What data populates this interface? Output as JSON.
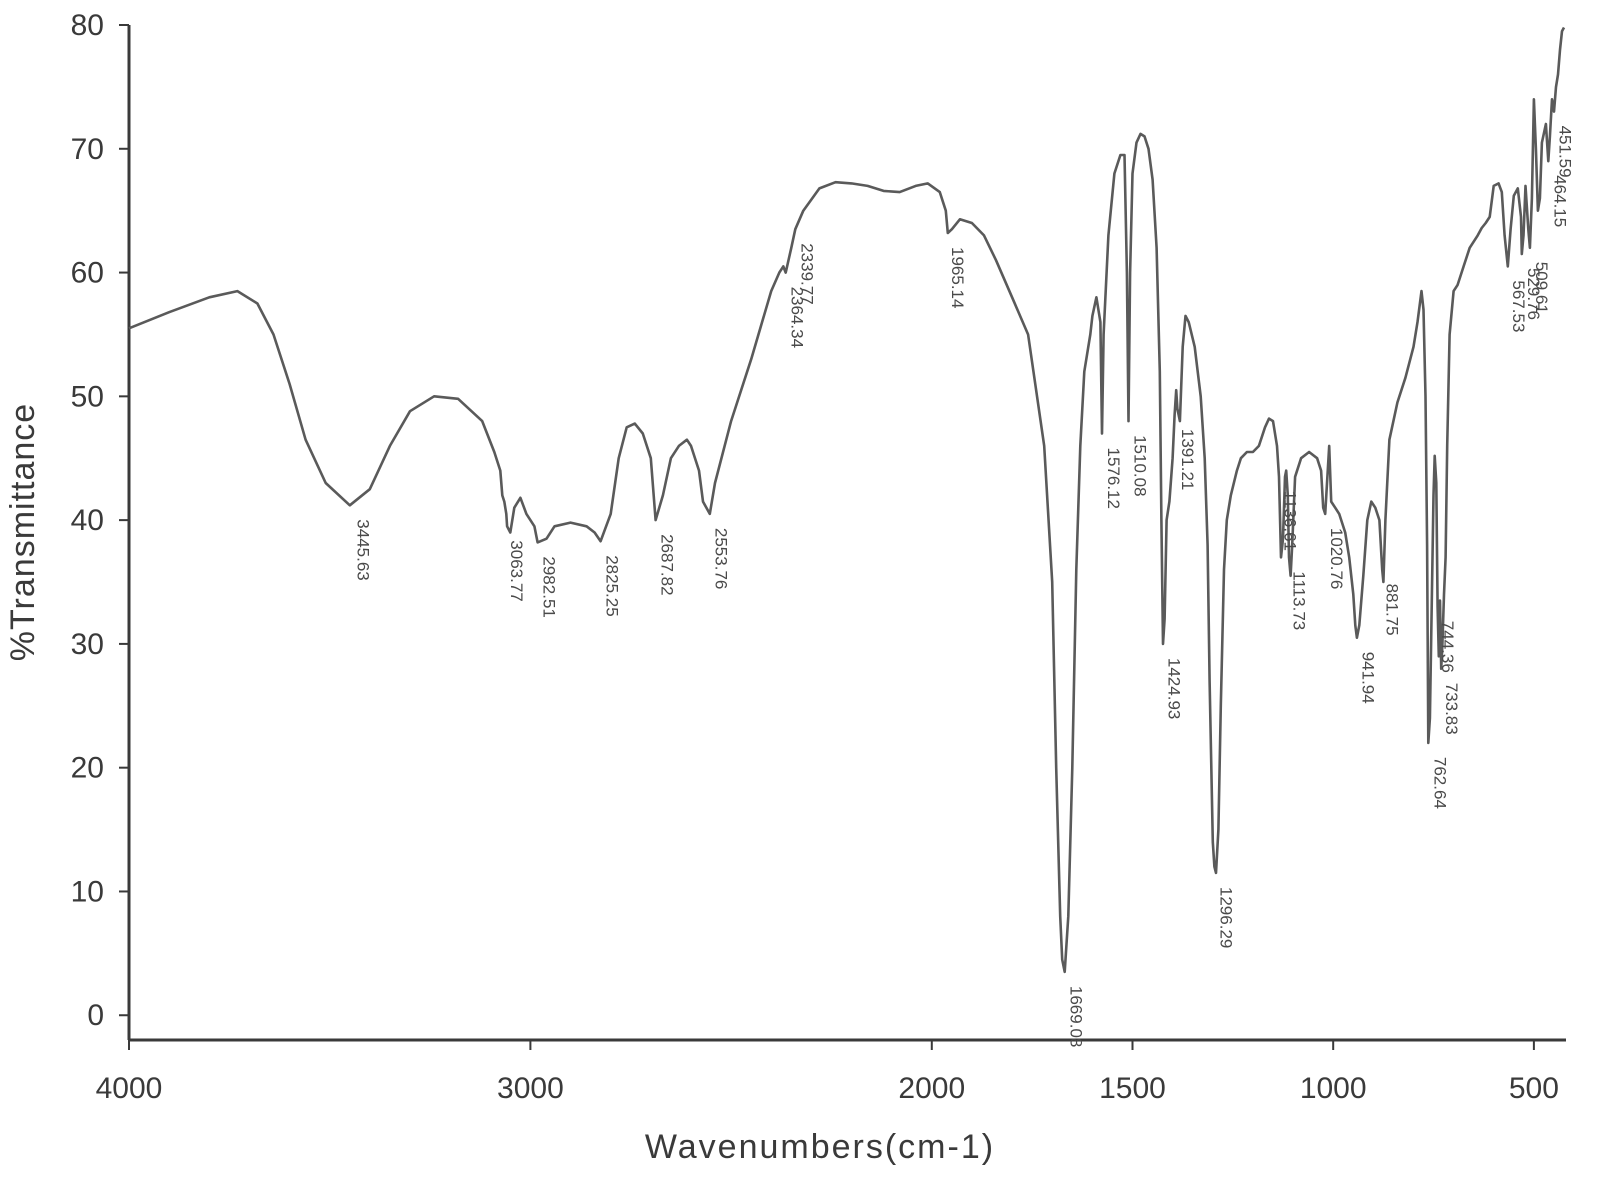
{
  "chart_data": {
    "type": "line",
    "title": "",
    "xlabel": "Wavenumbers(cm-1)",
    "ylabel": "%Transmittance",
    "xlim": [
      4000,
      420
    ],
    "ylim": [
      -2,
      80
    ],
    "x_reversed": true,
    "grid": false,
    "legend": "none",
    "xticks": [
      {
        "value": 4000,
        "label": "4000"
      },
      {
        "value": 3000,
        "label": "3000"
      },
      {
        "value": 2000,
        "label": "2000"
      },
      {
        "value": 1500,
        "label": "1500"
      },
      {
        "value": 1000,
        "label": "1000"
      },
      {
        "value": 500,
        "label": "500"
      }
    ],
    "yticks": [
      {
        "value": 0,
        "label": "0"
      },
      {
        "value": 10,
        "label": "10"
      },
      {
        "value": 20,
        "label": "20"
      },
      {
        "value": 30,
        "label": "30"
      },
      {
        "value": 40,
        "label": "40"
      },
      {
        "value": 50,
        "label": "50"
      },
      {
        "value": 60,
        "label": "60"
      },
      {
        "value": 70,
        "label": "70"
      },
      {
        "value": 80,
        "label": "80"
      }
    ],
    "series": [
      {
        "color": "#5a5a5a",
        "points": [
          [
            4000,
            55.5
          ],
          [
            3900,
            56.8
          ],
          [
            3800,
            58.0
          ],
          [
            3730,
            58.5
          ],
          [
            3680,
            57.5
          ],
          [
            3640,
            55.0
          ],
          [
            3600,
            51.0
          ],
          [
            3560,
            46.5
          ],
          [
            3510,
            43.0
          ],
          [
            3450,
            41.2
          ],
          [
            3400,
            42.5
          ],
          [
            3350,
            46.0
          ],
          [
            3300,
            48.8
          ],
          [
            3240,
            50.0
          ],
          [
            3180,
            49.8
          ],
          [
            3120,
            48.0
          ],
          [
            3090,
            45.5
          ],
          [
            3075,
            44.0
          ],
          [
            3070,
            42.0
          ],
          [
            3065,
            41.5
          ],
          [
            3060,
            40.5
          ],
          [
            3058,
            39.5
          ],
          [
            3050,
            39.0
          ],
          [
            3040,
            41.0
          ],
          [
            3025,
            41.8
          ],
          [
            3010,
            40.5
          ],
          [
            2990,
            39.5
          ],
          [
            2982,
            38.2
          ],
          [
            2960,
            38.5
          ],
          [
            2940,
            39.5
          ],
          [
            2900,
            39.8
          ],
          [
            2860,
            39.5
          ],
          [
            2840,
            39.0
          ],
          [
            2825,
            38.3
          ],
          [
            2800,
            40.5
          ],
          [
            2780,
            45.0
          ],
          [
            2760,
            47.5
          ],
          [
            2740,
            47.8
          ],
          [
            2720,
            47.0
          ],
          [
            2700,
            45.0
          ],
          [
            2688,
            40.0
          ],
          [
            2670,
            42.0
          ],
          [
            2650,
            45.0
          ],
          [
            2630,
            46.0
          ],
          [
            2610,
            46.5
          ],
          [
            2600,
            46.0
          ],
          [
            2580,
            44.0
          ],
          [
            2570,
            41.5
          ],
          [
            2553,
            40.5
          ],
          [
            2540,
            43.0
          ],
          [
            2500,
            48.0
          ],
          [
            2450,
            53.0
          ],
          [
            2400,
            58.5
          ],
          [
            2380,
            60.0
          ],
          [
            2370,
            60.5
          ],
          [
            2364,
            60.0
          ],
          [
            2350,
            62.0
          ],
          [
            2340,
            63.5
          ],
          [
            2320,
            65.0
          ],
          [
            2280,
            66.8
          ],
          [
            2240,
            67.3
          ],
          [
            2200,
            67.2
          ],
          [
            2160,
            67.0
          ],
          [
            2120,
            66.6
          ],
          [
            2080,
            66.5
          ],
          [
            2040,
            67.0
          ],
          [
            2010,
            67.2
          ],
          [
            1980,
            66.5
          ],
          [
            1965,
            65.0
          ],
          [
            1960,
            63.2
          ],
          [
            1950,
            63.5
          ],
          [
            1930,
            64.3
          ],
          [
            1900,
            64.0
          ],
          [
            1870,
            63.0
          ],
          [
            1840,
            61.0
          ],
          [
            1800,
            58.0
          ],
          [
            1760,
            55.0
          ],
          [
            1720,
            46.0
          ],
          [
            1700,
            35.0
          ],
          [
            1690,
            20.0
          ],
          [
            1680,
            8.0
          ],
          [
            1675,
            4.5
          ],
          [
            1669,
            3.5
          ],
          [
            1660,
            8.0
          ],
          [
            1650,
            20.0
          ],
          [
            1640,
            36.0
          ],
          [
            1630,
            46.0
          ],
          [
            1620,
            52.0
          ],
          [
            1605,
            55.0
          ],
          [
            1600,
            56.5
          ],
          [
            1590,
            58.0
          ],
          [
            1580,
            56.0
          ],
          [
            1576,
            47.0
          ],
          [
            1572,
            55.0
          ],
          [
            1560,
            63.0
          ],
          [
            1545,
            68.0
          ],
          [
            1530,
            69.5
          ],
          [
            1520,
            69.5
          ],
          [
            1514,
            60.0
          ],
          [
            1510,
            48.0
          ],
          [
            1506,
            60.0
          ],
          [
            1500,
            68.0
          ],
          [
            1490,
            70.5
          ],
          [
            1480,
            71.2
          ],
          [
            1470,
            71.0
          ],
          [
            1460,
            70.0
          ],
          [
            1450,
            67.5
          ],
          [
            1440,
            62.0
          ],
          [
            1432,
            52.0
          ],
          [
            1428,
            40.0
          ],
          [
            1424,
            30.0
          ],
          [
            1420,
            32.0
          ],
          [
            1415,
            40.0
          ],
          [
            1408,
            41.5
          ],
          [
            1400,
            45.0
          ],
          [
            1395,
            48.5
          ],
          [
            1391,
            50.5
          ],
          [
            1388,
            49.0
          ],
          [
            1382,
            48.0
          ],
          [
            1375,
            54.0
          ],
          [
            1368,
            56.5
          ],
          [
            1360,
            56.0
          ],
          [
            1345,
            54.0
          ],
          [
            1330,
            50.0
          ],
          [
            1320,
            45.0
          ],
          [
            1313,
            38.0
          ],
          [
            1308,
            27.0
          ],
          [
            1300,
            14.0
          ],
          [
            1296,
            12.0
          ],
          [
            1292,
            11.5
          ],
          [
            1286,
            15.0
          ],
          [
            1280,
            25.0
          ],
          [
            1272,
            36.0
          ],
          [
            1265,
            40.0
          ],
          [
            1255,
            42.0
          ],
          [
            1240,
            44.0
          ],
          [
            1230,
            45.0
          ],
          [
            1215,
            45.5
          ],
          [
            1200,
            45.5
          ],
          [
            1185,
            46.0
          ],
          [
            1170,
            47.5
          ],
          [
            1160,
            48.2
          ],
          [
            1150,
            48.0
          ],
          [
            1140,
            46.0
          ],
          [
            1135,
            43.5
          ],
          [
            1130,
            37.0
          ],
          [
            1125,
            38.5
          ],
          [
            1120,
            43.5
          ],
          [
            1117,
            44.0
          ],
          [
            1113,
            42.0
          ],
          [
            1110,
            37.0
          ],
          [
            1106,
            35.5
          ],
          [
            1102,
            38.0
          ],
          [
            1095,
            43.5
          ],
          [
            1080,
            45.0
          ],
          [
            1060,
            45.5
          ],
          [
            1040,
            45.0
          ],
          [
            1030,
            44.0
          ],
          [
            1025,
            41.0
          ],
          [
            1020,
            40.5
          ],
          [
            1010,
            46.0
          ],
          [
            1005,
            41.5
          ],
          [
            995,
            41.0
          ],
          [
            985,
            40.5
          ],
          [
            970,
            39.0
          ],
          [
            960,
            37.0
          ],
          [
            950,
            34.0
          ],
          [
            945,
            31.5
          ],
          [
            941,
            30.5
          ],
          [
            935,
            31.5
          ],
          [
            925,
            35.5
          ],
          [
            915,
            40.0
          ],
          [
            905,
            41.5
          ],
          [
            895,
            41.0
          ],
          [
            885,
            40.0
          ],
          [
            878,
            36.0
          ],
          [
            875,
            35.0
          ],
          [
            870,
            40.0
          ],
          [
            860,
            46.5
          ],
          [
            840,
            49.5
          ],
          [
            820,
            51.5
          ],
          [
            800,
            54.0
          ],
          [
            790,
            56.0
          ],
          [
            780,
            58.5
          ],
          [
            775,
            57.0
          ],
          [
            770,
            50.0
          ],
          [
            766,
            38.0
          ],
          [
            763,
            22.0
          ],
          [
            759,
            24.0
          ],
          [
            755,
            32.0
          ],
          [
            750,
            42.0
          ],
          [
            747,
            45.2
          ],
          [
            743,
            43.0
          ],
          [
            740,
            33.0
          ],
          [
            737,
            29.0
          ],
          [
            734,
            33.5
          ],
          [
            731,
            28.0
          ],
          [
            728,
            30.0
          ],
          [
            724,
            34.0
          ],
          [
            720,
            37.0
          ],
          [
            716,
            46.0
          ],
          [
            710,
            55.0
          ],
          [
            700,
            58.5
          ],
          [
            690,
            59.0
          ],
          [
            675,
            60.5
          ],
          [
            660,
            62.0
          ],
          [
            640,
            63.0
          ],
          [
            630,
            63.6
          ],
          [
            620,
            64.0
          ],
          [
            610,
            64.5
          ],
          [
            600,
            67.0
          ],
          [
            588,
            67.2
          ],
          [
            580,
            66.5
          ],
          [
            573,
            63.0
          ],
          [
            565,
            60.5
          ],
          [
            558,
            63.5
          ],
          [
            550,
            66.2
          ],
          [
            540,
            66.8
          ],
          [
            532,
            64.5
          ],
          [
            530,
            61.5
          ],
          [
            526,
            63.0
          ],
          [
            521,
            67.0
          ],
          [
            514,
            63.5
          ],
          [
            510,
            62.0
          ],
          [
            505,
            66.0
          ],
          [
            500,
            74.0
          ],
          [
            495,
            70.0
          ],
          [
            490,
            65.0
          ],
          [
            485,
            66.0
          ],
          [
            480,
            70.5
          ],
          [
            470,
            72.0
          ],
          [
            464,
            69.0
          ],
          [
            460,
            71.0
          ],
          [
            455,
            74.0
          ],
          [
            450,
            73.0
          ],
          [
            445,
            75.0
          ],
          [
            440,
            76.0
          ],
          [
            435,
            78.0
          ],
          [
            430,
            79.5
          ],
          [
            425,
            79.8
          ]
        ]
      }
    ],
    "annotations": [
      {
        "x": 3445.63,
        "label": "3445.63"
      },
      {
        "x": 3063.77,
        "label": "3063.77"
      },
      {
        "x": 2982.51,
        "label": "2982.51"
      },
      {
        "x": 2825.25,
        "label": "2825.25"
      },
      {
        "x": 2687.82,
        "label": "2687.82"
      },
      {
        "x": 2553.76,
        "label": "2553.76"
      },
      {
        "x": 2364.34,
        "label": "2364.34"
      },
      {
        "x": 2339.77,
        "label": "2339.77"
      },
      {
        "x": 1965.14,
        "label": "1965.14"
      },
      {
        "x": 1669.08,
        "label": "1669.08"
      },
      {
        "x": 1576.12,
        "label": "1576.12"
      },
      {
        "x": 1510.08,
        "label": "1510.08"
      },
      {
        "x": 1424.93,
        "label": "1424.93"
      },
      {
        "x": 1391.21,
        "label": "1391.21"
      },
      {
        "x": 1296.29,
        "label": "1296.29"
      },
      {
        "x": 1136.61,
        "label": "1136.61"
      },
      {
        "x": 1113.73,
        "label": "1113.73"
      },
      {
        "x": 1020.76,
        "label": "1020.76"
      },
      {
        "x": 941.94,
        "label": "941.94"
      },
      {
        "x": 881.75,
        "label": "881.75"
      },
      {
        "x": 762.64,
        "label": "762.64"
      },
      {
        "x": 744.36,
        "label": "744.36"
      },
      {
        "x": 733.83,
        "label": "733.83"
      },
      {
        "x": 567.53,
        "label": "567.53"
      },
      {
        "x": 529.76,
        "label": "529.76"
      },
      {
        "x": 509.61,
        "label": "509.61"
      },
      {
        "x": 464.15,
        "label": "464.15"
      },
      {
        "x": 451.59,
        "label": "451.59"
      }
    ]
  }
}
